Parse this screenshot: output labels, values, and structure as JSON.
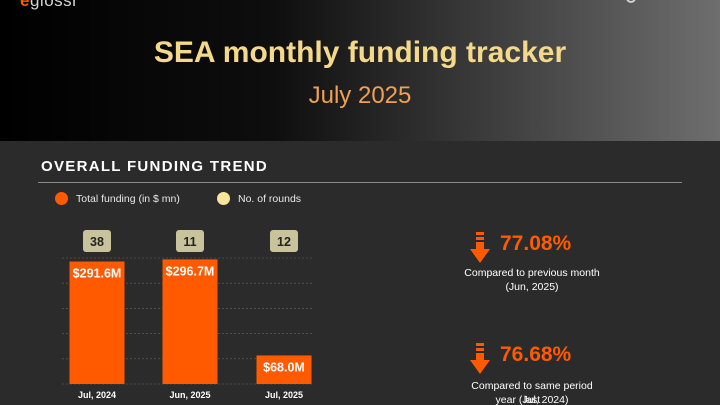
{
  "header": {
    "logo_a": "e",
    "logo_b": "glossr",
    "title": "SEA monthly funding tracker",
    "subtitle": "July 2025"
  },
  "section": {
    "title": "OVERALL FUNDING TREND"
  },
  "legend": [
    {
      "label": "Total funding (in $ mn)",
      "color": "#ff5a00"
    },
    {
      "label": "No. of rounds",
      "color": "#f7e59a"
    }
  ],
  "chart_data": {
    "type": "bar",
    "categories": [
      "Jul, 2024",
      "Jun, 2025",
      "Jul, 2025"
    ],
    "series": [
      {
        "name": "Total funding (in $ mn)",
        "values": [
          291.6,
          296.7,
          68.0
        ],
        "labels": [
          "$291.6M",
          "$296.7M",
          "$68.0M"
        ]
      },
      {
        "name": "No. of rounds",
        "values": [
          38,
          11,
          12
        ]
      }
    ],
    "ylim": [
      0,
      300
    ],
    "grid": true,
    "legend_position": "top-left",
    "colors": {
      "bar": "#ff5a00",
      "rounds_badge": "#c8c39a",
      "grid": "#666666"
    }
  },
  "metrics": [
    {
      "value": "77.08%",
      "caption_1": "Compared to previous month",
      "caption_2": "(Jun, 2025)",
      "direction": "down"
    },
    {
      "value": "76.68%",
      "caption_1": "Compared to same period last",
      "caption_2": "year (Jul, 2024)",
      "direction": "down"
    }
  ]
}
